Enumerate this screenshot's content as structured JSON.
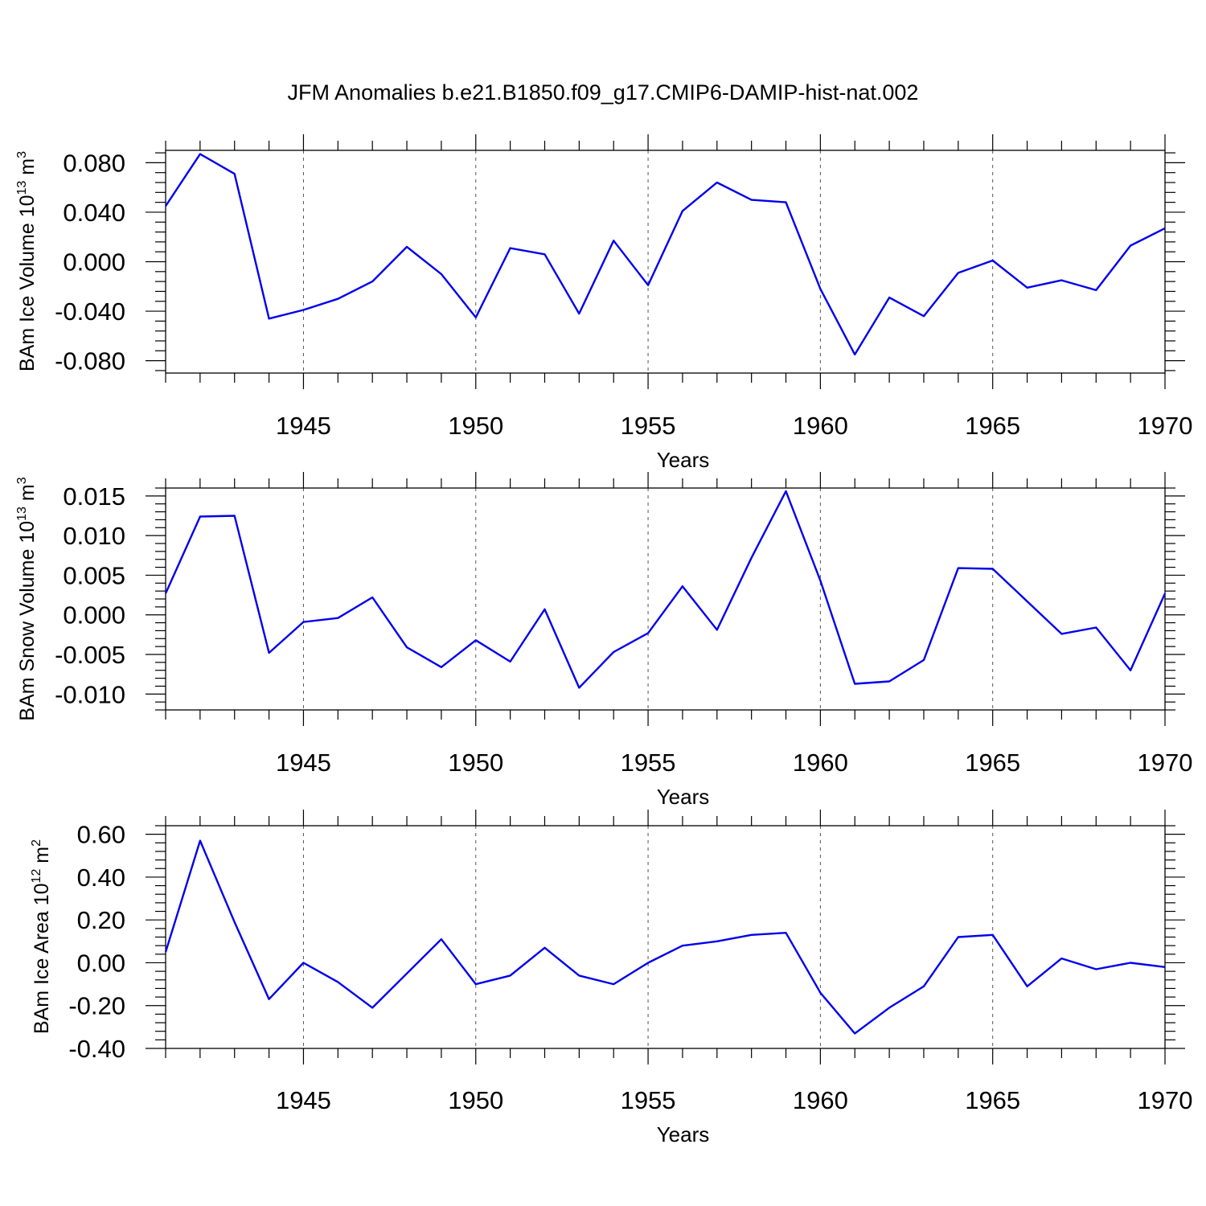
{
  "title": "JFM Anomalies b.e21.B1850.f09_g17.CMIP6-DAMIP-hist-nat.002",
  "colors": {
    "line": "#0000ee",
    "axis": "#000000",
    "grid": "#555555"
  },
  "chart_data": [
    {
      "type": "line",
      "name": "ice-volume",
      "ylabel": {
        "base": "BAm Ice Volume 10",
        "exp1": "13",
        "unit": " m",
        "exp2": "3"
      },
      "xlabel": "Years",
      "xlim": [
        1941,
        1970
      ],
      "ylim": [
        -0.09,
        0.09
      ],
      "x_ticks": [
        "1945",
        "1950",
        "1955",
        "1960",
        "1965",
        "1970"
      ],
      "x_tick_values": [
        1945,
        1950,
        1955,
        1960,
        1965,
        1970
      ],
      "y_ticks": [
        "0.080",
        "0.040",
        "0.000",
        "-0.040",
        "-0.080"
      ],
      "y_tick_values": [
        0.08,
        0.04,
        0.0,
        -0.04,
        -0.08
      ],
      "y_minor_step": 0.008,
      "grid": "dashed vertical at major x ticks",
      "x": [
        1941,
        1942,
        1943,
        1944,
        1945,
        1946,
        1947,
        1948,
        1949,
        1950,
        1951,
        1952,
        1953,
        1954,
        1955,
        1956,
        1957,
        1958,
        1959,
        1960,
        1961,
        1962,
        1963,
        1964,
        1965,
        1966,
        1967,
        1968,
        1969,
        1970
      ],
      "values": [
        0.045,
        0.087,
        0.071,
        -0.046,
        -0.039,
        -0.03,
        -0.016,
        0.012,
        -0.01,
        -0.045,
        0.011,
        0.006,
        -0.042,
        0.017,
        -0.019,
        0.041,
        0.064,
        0.05,
        0.048,
        -0.022,
        -0.075,
        -0.029,
        -0.044,
        -0.009,
        0.001,
        -0.021,
        -0.015,
        -0.023,
        0.013,
        0.027
      ]
    },
    {
      "type": "line",
      "name": "snow-volume",
      "ylabel": {
        "base": "BAm Snow Volume 10",
        "exp1": "13",
        "unit": " m",
        "exp2": "3"
      },
      "xlabel": "Years",
      "xlim": [
        1941,
        1970
      ],
      "ylim": [
        -0.012,
        0.016
      ],
      "x_ticks": [
        "1945",
        "1950",
        "1955",
        "1960",
        "1965",
        "1970"
      ],
      "x_tick_values": [
        1945,
        1950,
        1955,
        1960,
        1965,
        1970
      ],
      "y_ticks": [
        "0.015",
        "0.010",
        "0.005",
        "0.000",
        "-0.005",
        "-0.010"
      ],
      "y_tick_values": [
        0.015,
        0.01,
        0.005,
        0.0,
        -0.005,
        -0.01
      ],
      "y_minor_step": 0.001,
      "grid": "dashed vertical at major x ticks",
      "x": [
        1941,
        1942,
        1943,
        1944,
        1945,
        1946,
        1947,
        1948,
        1949,
        1950,
        1951,
        1952,
        1953,
        1954,
        1955,
        1956,
        1957,
        1958,
        1959,
        1960,
        1961,
        1962,
        1963,
        1964,
        1965,
        1966,
        1967,
        1968,
        1969,
        1970
      ],
      "values": [
        0.0027,
        0.0124,
        0.0125,
        -0.0048,
        -0.0009,
        -0.0004,
        0.0022,
        -0.0041,
        -0.0066,
        -0.0032,
        -0.0059,
        0.0007,
        -0.0092,
        -0.0047,
        -0.0023,
        0.0036,
        -0.0019,
        0.0072,
        0.0156,
        0.0043,
        -0.0087,
        -0.0084,
        -0.0057,
        0.0059,
        0.0058,
        0.0017,
        -0.0024,
        -0.0016,
        -0.007,
        0.0027
      ]
    },
    {
      "type": "line",
      "name": "ice-area",
      "ylabel": {
        "base": "BAm Ice Area 10",
        "exp1": "12",
        "unit": " m",
        "exp2": "2"
      },
      "xlabel": "Years",
      "xlim": [
        1941,
        1970
      ],
      "ylim": [
        -0.4,
        0.64
      ],
      "x_ticks": [
        "1945",
        "1950",
        "1955",
        "1960",
        "1965",
        "1970"
      ],
      "x_tick_values": [
        1945,
        1950,
        1955,
        1960,
        1965,
        1970
      ],
      "y_ticks": [
        "0.60",
        "0.40",
        "0.20",
        "0.00",
        "-0.20",
        "-0.40"
      ],
      "y_tick_values": [
        0.6,
        0.4,
        0.2,
        0.0,
        -0.2,
        -0.4
      ],
      "y_minor_step": 0.04,
      "grid": "dashed vertical at major x ticks",
      "x": [
        1941,
        1942,
        1943,
        1944,
        1945,
        1946,
        1947,
        1948,
        1949,
        1950,
        1951,
        1952,
        1953,
        1954,
        1955,
        1956,
        1957,
        1958,
        1959,
        1960,
        1961,
        1962,
        1963,
        1964,
        1965,
        1966,
        1967,
        1968,
        1969,
        1970
      ],
      "values": [
        0.05,
        0.57,
        0.19,
        -0.17,
        0.0,
        -0.09,
        -0.21,
        -0.05,
        0.11,
        -0.1,
        -0.06,
        0.07,
        -0.06,
        -0.1,
        0.0,
        0.08,
        0.1,
        0.13,
        0.14,
        -0.14,
        -0.33,
        -0.21,
        -0.11,
        0.12,
        0.13,
        -0.11,
        0.02,
        -0.03,
        0.0,
        -0.02
      ]
    }
  ]
}
